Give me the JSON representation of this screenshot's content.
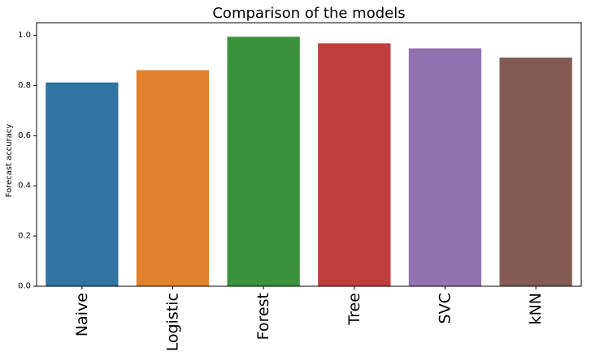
{
  "chart_data": {
    "type": "bar",
    "title": "Comparison of the models",
    "xlabel": "",
    "ylabel": "Forecast accuracy",
    "categories": [
      "Naive",
      "Logistic",
      "Forest",
      "Tree",
      "SVC",
      "kNN"
    ],
    "values": [
      0.812,
      0.861,
      0.994,
      0.968,
      0.948,
      0.911
    ],
    "colors": [
      "#3274a1",
      "#e1812c",
      "#3a923a",
      "#c03d3e",
      "#9372b2",
      "#845b53"
    ],
    "ylim": [
      0,
      1.05
    ],
    "yticks": [
      "0.0",
      "0.2",
      "0.4",
      "0.6",
      "0.8",
      "1.0"
    ],
    "grid": false,
    "legend": "none"
  }
}
